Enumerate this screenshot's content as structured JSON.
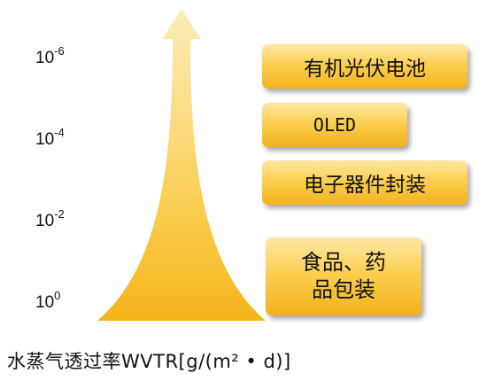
{
  "axis": {
    "ticks": [
      {
        "base": "10",
        "exp": "-6"
      },
      {
        "base": "10",
        "exp": "-4"
      },
      {
        "base": "10",
        "exp": "-2"
      },
      {
        "base": "10",
        "exp": "0"
      }
    ],
    "caption": "水蒸气透过率WVTR[g/(m² • d)]"
  },
  "applications": [
    {
      "label": "有机光伏电池"
    },
    {
      "label": "OLED"
    },
    {
      "label": "电子器件封装"
    },
    {
      "label_line1": "食品、药",
      "label_line2": "品包装"
    }
  ],
  "colors": {
    "arrow_tip": "#fde9a8",
    "arrow_mid": "#fbd35e",
    "arrow_base": "#f6b41c",
    "box_top": "#fde8a4",
    "box_bottom": "#f2b21c"
  }
}
